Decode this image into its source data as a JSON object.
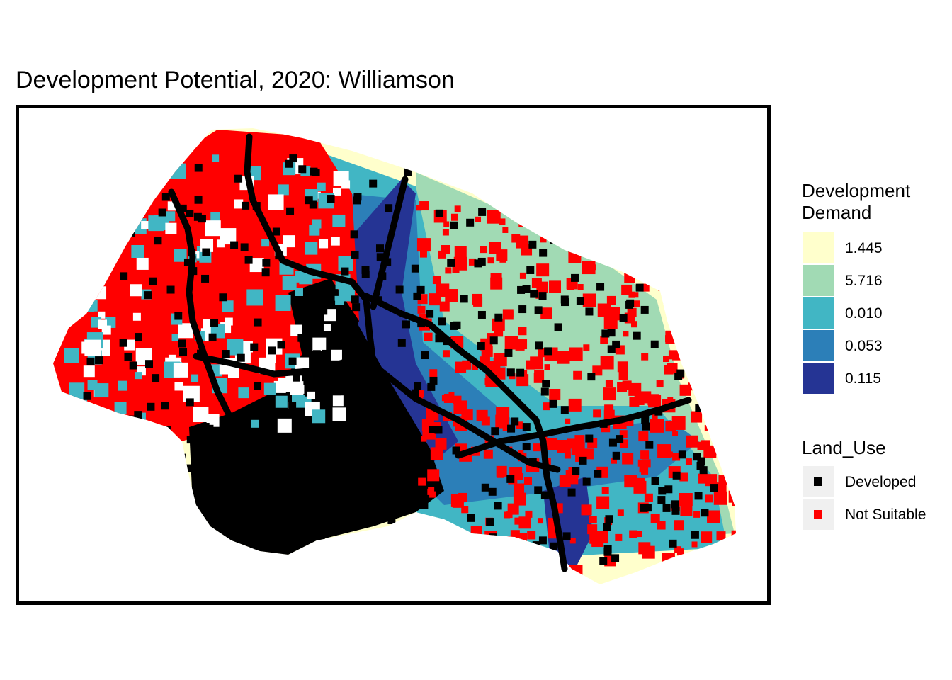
{
  "title": "Development Potential, 2020: Williamson",
  "legend_demand": {
    "title_line1": "Development",
    "title_line2": "Demand",
    "items": [
      {
        "label": "1.445",
        "color": "#ffffcc"
      },
      {
        "label": "5.716",
        "color": "#a1dab4"
      },
      {
        "label": "0.010",
        "color": "#41b6c4"
      },
      {
        "label": "0.053",
        "color": "#2c7fb8"
      },
      {
        "label": "0.115",
        "color": "#253494"
      }
    ]
  },
  "legend_landuse": {
    "title": "Land_Use",
    "items": [
      {
        "label": "Developed",
        "color": "#000000"
      },
      {
        "label": "Not Suitable",
        "color": "#ff0000"
      }
    ]
  }
}
